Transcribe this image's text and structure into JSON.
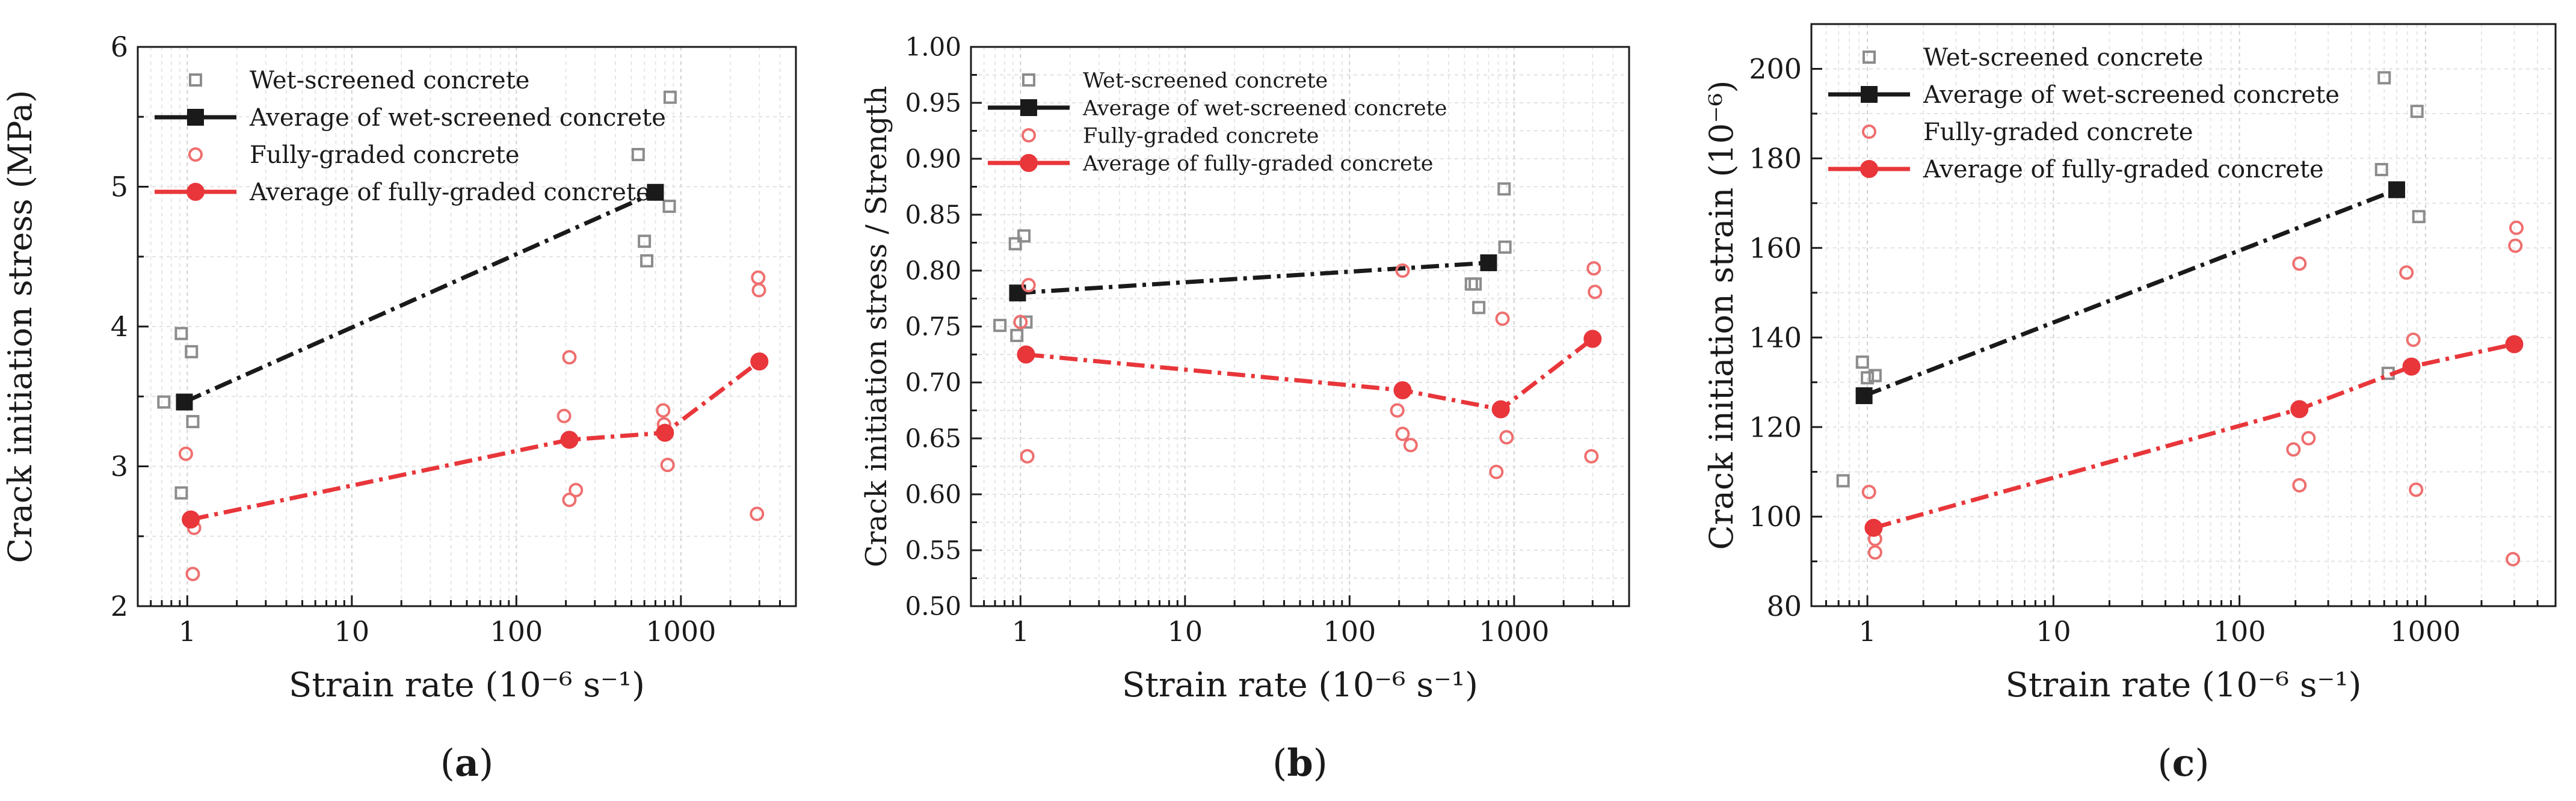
{
  "chart_data": [
    {
      "type": "scatter",
      "panel_label": "a",
      "xlabel": "Strain rate (10⁻⁶ s⁻¹)",
      "ylabel": "Crack initiation stress (MPa)",
      "xscale": "log",
      "xlim": [
        0.5,
        5000
      ],
      "ylim": [
        2,
        6
      ],
      "xticks": [
        1,
        10,
        100,
        1000
      ],
      "xtick_labels": [
        "1",
        "10",
        "100",
        "1000"
      ],
      "yticks": [
        2,
        3,
        4,
        5,
        6
      ],
      "ytick_labels": [
        "2",
        "3",
        "4",
        "5",
        "6"
      ],
      "grid": true,
      "legend_position": "top-left",
      "series": [
        {
          "name": "Wet-screened concrete",
          "kind": "scatter",
          "marker": "open-square",
          "color": "#8c8c8c",
          "points": [
            [
              0.72,
              3.46
            ],
            [
              0.92,
              3.95
            ],
            [
              1.06,
              3.82
            ],
            [
              1.08,
              3.32
            ],
            [
              0.92,
              2.81
            ],
            [
              550,
              5.23
            ],
            [
              600,
              4.61
            ],
            [
              620,
              4.47
            ],
            [
              850,
              4.86
            ],
            [
              860,
              5.64
            ]
          ]
        },
        {
          "name": "Average of wet-screened concrete",
          "kind": "line",
          "marker": "filled-square",
          "color": "#1a1a1a",
          "points": [
            [
              0.96,
              3.46
            ],
            [
              700,
              4.96
            ]
          ]
        },
        {
          "name": "Fully-graded concrete",
          "kind": "scatter",
          "marker": "open-circle",
          "color": "#ef6f6f",
          "points": [
            [
              0.98,
              3.09
            ],
            [
              1.1,
              2.56
            ],
            [
              1.08,
              2.23
            ],
            [
              195,
              3.36
            ],
            [
              210,
              3.78
            ],
            [
              210,
              2.76
            ],
            [
              230,
              2.83
            ],
            [
              780,
              3.4
            ],
            [
              790,
              3.3
            ],
            [
              830,
              3.01
            ],
            [
              2950,
              4.35
            ],
            [
              2980,
              4.26
            ],
            [
              2900,
              2.66
            ]
          ]
        },
        {
          "name": "Average of fully-graded concrete",
          "kind": "line",
          "marker": "filled-circle",
          "color": "#e8363a",
          "points": [
            [
              1.05,
              2.62
            ],
            [
              210,
              3.19
            ],
            [
              800,
              3.24
            ],
            [
              3000,
              3.75
            ]
          ]
        }
      ]
    },
    {
      "type": "scatter",
      "panel_label": "b",
      "xlabel": "Strain rate (10⁻⁶ s⁻¹)",
      "ylabel": "Crack initiation stress / Strength",
      "xscale": "log",
      "xlim": [
        0.5,
        5000
      ],
      "ylim": [
        0.5,
        1.0
      ],
      "xticks": [
        1,
        10,
        100,
        1000
      ],
      "xtick_labels": [
        "1",
        "10",
        "100",
        "1000"
      ],
      "yticks": [
        0.5,
        0.55,
        0.6,
        0.65,
        0.7,
        0.75,
        0.8,
        0.85,
        0.9,
        0.95,
        1.0
      ],
      "ytick_labels": [
        "0.50",
        "0.55",
        "0.60",
        "0.65",
        "0.70",
        "0.75",
        "0.80",
        "0.85",
        "0.90",
        "0.95",
        "1.00"
      ],
      "grid": true,
      "legend_position": "top-left",
      "series": [
        {
          "name": "Wet-screened concrete",
          "kind": "scatter",
          "marker": "open-square",
          "color": "#8c8c8c",
          "points": [
            [
              0.75,
              0.751
            ],
            [
              0.93,
              0.824
            ],
            [
              1.05,
              0.831
            ],
            [
              1.08,
              0.754
            ],
            [
              0.95,
              0.742
            ],
            [
              550,
              0.788
            ],
            [
              580,
              0.788
            ],
            [
              610,
              0.767
            ],
            [
              870,
              0.873
            ],
            [
              880,
              0.821
            ]
          ]
        },
        {
          "name": "Average of wet-screened concrete",
          "kind": "line",
          "marker": "filled-square",
          "color": "#1a1a1a",
          "points": [
            [
              0.96,
              0.78
            ],
            [
              700,
              0.807
            ]
          ]
        },
        {
          "name": "Fully-graded concrete",
          "kind": "scatter",
          "marker": "open-circle",
          "color": "#ef6f6f",
          "points": [
            [
              1.0,
              0.754
            ],
            [
              1.12,
              0.787
            ],
            [
              1.1,
              0.634
            ],
            [
              195,
              0.675
            ],
            [
              210,
              0.8
            ],
            [
              210,
              0.654
            ],
            [
              235,
              0.644
            ],
            [
              780,
              0.62
            ],
            [
              850,
              0.757
            ],
            [
              900,
              0.651
            ],
            [
              3050,
              0.802
            ],
            [
              3100,
              0.781
            ],
            [
              2950,
              0.634
            ]
          ]
        },
        {
          "name": "Average of fully-graded concrete",
          "kind": "line",
          "marker": "filled-circle",
          "color": "#e8363a",
          "points": [
            [
              1.08,
              0.725
            ],
            [
              210,
              0.693
            ],
            [
              830,
              0.676
            ],
            [
              3000,
              0.739
            ]
          ]
        }
      ]
    },
    {
      "type": "scatter",
      "panel_label": "c",
      "xlabel": "Strain rate (10⁻⁶ s⁻¹)",
      "ylabel": "Crack initiation strain (10⁻⁶)",
      "xscale": "log",
      "xlim": [
        0.5,
        5000
      ],
      "ylim": [
        80,
        210
      ],
      "xticks": [
        1,
        10,
        100,
        1000
      ],
      "xtick_labels": [
        "1",
        "10",
        "100",
        "1000"
      ],
      "yticks": [
        80,
        100,
        120,
        140,
        160,
        180,
        200
      ],
      "ytick_labels": [
        "80",
        "100",
        "120",
        "140",
        "160",
        "180",
        "200"
      ],
      "grid": true,
      "legend_position": "top-left",
      "series": [
        {
          "name": "Wet-screened concrete",
          "kind": "scatter",
          "marker": "open-square",
          "color": "#8c8c8c",
          "points": [
            [
              0.74,
              108
            ],
            [
              0.94,
              134.5
            ],
            [
              1.0,
              131
            ],
            [
              1.1,
              131.5
            ],
            [
              600,
              198
            ],
            [
              580,
              177.5
            ],
            [
              630,
              132
            ],
            [
              900,
              190.5
            ],
            [
              920,
              167
            ]
          ]
        },
        {
          "name": "Average of wet-screened concrete",
          "kind": "line",
          "marker": "filled-square",
          "color": "#1a1a1a",
          "points": [
            [
              0.96,
              127
            ],
            [
              700,
              173
            ]
          ]
        },
        {
          "name": "Fully-graded concrete",
          "kind": "scatter",
          "marker": "open-circle",
          "color": "#ef6f6f",
          "points": [
            [
              1.02,
              105.5
            ],
            [
              1.1,
              95
            ],
            [
              1.1,
              92
            ],
            [
              195,
              115
            ],
            [
              210,
              156.5
            ],
            [
              210,
              107
            ],
            [
              235,
              117.5
            ],
            [
              790,
              154.5
            ],
            [
              860,
              139.5
            ],
            [
              890,
              106
            ],
            [
              3080,
              164.5
            ],
            [
              3040,
              160.5
            ],
            [
              2950,
              90.5
            ]
          ]
        },
        {
          "name": "Average of fully-graded concrete",
          "kind": "line",
          "marker": "filled-circle",
          "color": "#e8363a",
          "points": [
            [
              1.08,
              97.5
            ],
            [
              210,
              124
            ],
            [
              840,
              133.5
            ],
            [
              3000,
              138.5
            ]
          ]
        }
      ]
    }
  ]
}
